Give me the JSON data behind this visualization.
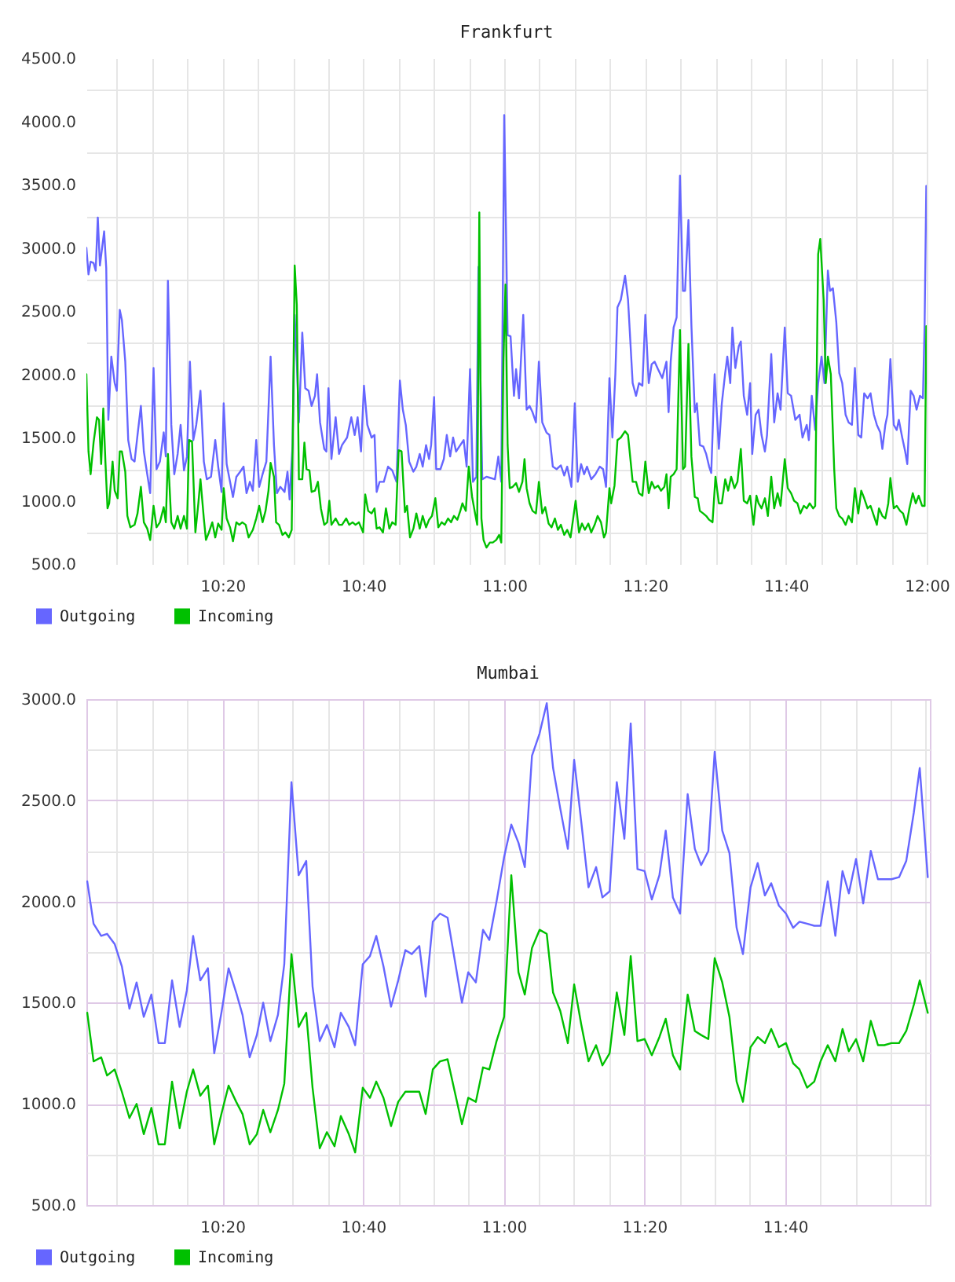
{
  "chart_data": [
    {
      "type": "line",
      "title": "Frankfurt",
      "xlim": [
        10.011,
        12.0
      ],
      "ylim": [
        500,
        4500
      ],
      "grid": true,
      "legend": "bottom left",
      "xticks": [
        {
          "value": 10.0833,
          "label": null
        },
        {
          "value": 10.1667,
          "label": null
        },
        {
          "value": 10.25,
          "label": null
        },
        {
          "value": 10.3333,
          "label": "10:20"
        },
        {
          "value": 10.4167,
          "label": null
        },
        {
          "value": 10.5,
          "label": null
        },
        {
          "value": 10.5833,
          "label": null
        },
        {
          "value": 10.6667,
          "label": "10:40"
        },
        {
          "value": 10.75,
          "label": null
        },
        {
          "value": 10.8333,
          "label": null
        },
        {
          "value": 10.9167,
          "label": null
        },
        {
          "value": 11.0,
          "label": "11:00"
        },
        {
          "value": 11.0833,
          "label": null
        },
        {
          "value": 11.1667,
          "label": null
        },
        {
          "value": 11.25,
          "label": null
        },
        {
          "value": 11.3333,
          "label": "11:20"
        },
        {
          "value": 11.4167,
          "label": null
        },
        {
          "value": 11.5,
          "label": null
        },
        {
          "value": 11.5833,
          "label": null
        },
        {
          "value": 11.6667,
          "label": "11:40"
        },
        {
          "value": 11.75,
          "label": null
        },
        {
          "value": 11.8333,
          "label": null
        },
        {
          "value": 11.9167,
          "label": null
        },
        {
          "value": 12.0,
          "label": "12:00"
        }
      ],
      "yticks": [
        {
          "value": 500,
          "label": "500.0"
        },
        {
          "value": 750,
          "label": null
        },
        {
          "value": 1000,
          "label": "1000.0"
        },
        {
          "value": 1250,
          "label": null
        },
        {
          "value": 1500,
          "label": "1500.0"
        },
        {
          "value": 1750,
          "label": null
        },
        {
          "value": 2000,
          "label": "2000.0"
        },
        {
          "value": 2250,
          "label": null
        },
        {
          "value": 2500,
          "label": "2500.0"
        },
        {
          "value": 2750,
          "label": null
        },
        {
          "value": 3000,
          "label": "3000.0"
        },
        {
          "value": 3250,
          "label": null
        },
        {
          "value": 3500,
          "label": "3500.0"
        },
        {
          "value": 3750,
          "label": null
        },
        {
          "value": 4000,
          "label": "4000.0"
        },
        {
          "value": 4250,
          "label": null
        },
        {
          "value": 4500,
          "label": "4500.0"
        }
      ],
      "series": [
        {
          "name": "Outgoing",
          "color": "#6666ff",
          "x": [
            10.011,
            10.016,
            10.021,
            10.028,
            10.033,
            10.038,
            10.043,
            10.053,
            10.058,
            10.063,
            10.07,
            10.078,
            10.083,
            10.09,
            10.095,
            10.103,
            10.11,
            10.118,
            10.125,
            10.132,
            10.14,
            10.147,
            10.155,
            10.162,
            10.17,
            10.177,
            10.185,
            10.194,
            10.199,
            10.204,
            10.212,
            10.219,
            10.227,
            10.234,
            10.242,
            10.249,
            10.256,
            10.264,
            10.271,
            10.281,
            10.289,
            10.296,
            10.306,
            10.316,
            10.323,
            10.331,
            10.336,
            10.343,
            10.351,
            10.358,
            10.366,
            10.375,
            10.383,
            10.39,
            10.398,
            10.405,
            10.413,
            10.42,
            10.428,
            10.437,
            10.447,
            10.455,
            10.462,
            10.47,
            10.48,
            10.487,
            10.492,
            10.499,
            10.504,
            10.509,
            10.514,
            10.522,
            10.529,
            10.537,
            10.544,
            10.552,
            10.557,
            10.564,
            10.574,
            10.579,
            10.584,
            10.591,
            10.601,
            10.609,
            10.616,
            10.628,
            10.638,
            10.646,
            10.653,
            10.661,
            10.668,
            10.676,
            10.686,
            10.693,
            10.698,
            10.705,
            10.715,
            10.725,
            10.735,
            10.745,
            10.753,
            10.76,
            10.767,
            10.775,
            10.785,
            10.792,
            10.8,
            10.807,
            10.815,
            10.822,
            10.827,
            10.834,
            10.839,
            10.849,
            10.857,
            10.864,
            10.872,
            10.879,
            10.886,
            10.896,
            10.904,
            10.911,
            10.919,
            10.926,
            10.934,
            10.939,
            10.948,
            10.958,
            10.968,
            10.978,
            10.986,
            10.993,
            11.0,
            11.008,
            11.015,
            11.023,
            11.028,
            11.035,
            11.045,
            11.053,
            11.06,
            11.067,
            11.075,
            11.082,
            11.09,
            11.1,
            11.107,
            11.115,
            11.124,
            11.134,
            11.142,
            11.149,
            11.159,
            11.167,
            11.174,
            11.182,
            11.189,
            11.196,
            11.206,
            11.216,
            11.226,
            11.234,
            11.241,
            11.249,
            11.256,
            11.263,
            11.268,
            11.276,
            11.286,
            11.293,
            11.304,
            11.312,
            11.319,
            11.327,
            11.334,
            11.342,
            11.349,
            11.356,
            11.364,
            11.374,
            11.384,
            11.389,
            11.394,
            11.401,
            11.408,
            11.416,
            11.423,
            11.428,
            11.436,
            11.443,
            11.451,
            11.456,
            11.463,
            11.471,
            11.478,
            11.485,
            11.49,
            11.498,
            11.508,
            11.515,
            11.523,
            11.528,
            11.535,
            11.54,
            11.547,
            11.555,
            11.56,
            11.567,
            11.575,
            11.582,
            11.587,
            11.595,
            11.602,
            11.609,
            11.617,
            11.622,
            11.632,
            11.639,
            11.647,
            11.654,
            11.664,
            11.671,
            11.679,
            11.689,
            11.699,
            11.706,
            11.716,
            11.721,
            11.728,
            11.736,
            11.743,
            11.751,
            11.758,
            11.766,
            11.771,
            11.778,
            11.786,
            11.793,
            11.8,
            11.808,
            11.815,
            11.823,
            11.83,
            11.838,
            11.845,
            11.852,
            11.86,
            11.867,
            11.875,
            11.882,
            11.89,
            11.895,
            11.902,
            11.907,
            11.914,
            11.922,
            11.929,
            11.934,
            11.942,
            11.949,
            11.954,
            11.962,
            11.969,
            11.976,
            11.984,
            11.991,
            11.995,
            11.999
          ],
          "values": [
            3000,
            2790,
            2890,
            2880,
            2820,
            3240,
            2860,
            3130,
            2840,
            1640,
            2140,
            1930,
            1870,
            2510,
            2430,
            2100,
            1480,
            1330,
            1310,
            1520,
            1750,
            1390,
            1210,
            1060,
            2050,
            1250,
            1310,
            1540,
            1350,
            2740,
            1600,
            1210,
            1370,
            1600,
            1240,
            1350,
            2100,
            1480,
            1600,
            1870,
            1310,
            1170,
            1190,
            1480,
            1270,
            1070,
            1770,
            1290,
            1150,
            1030,
            1190,
            1230,
            1270,
            1060,
            1150,
            1080,
            1480,
            1110,
            1210,
            1310,
            2140,
            1440,
            1060,
            1110,
            1070,
            1230,
            1010,
            1440,
            2470,
            2100,
            1620,
            2330,
            1890,
            1870,
            1750,
            1830,
            2000,
            1620,
            1410,
            1390,
            1890,
            1330,
            1660,
            1370,
            1440,
            1500,
            1660,
            1520,
            1660,
            1390,
            1910,
            1600,
            1500,
            1520,
            1070,
            1150,
            1150,
            1270,
            1240,
            1150,
            1950,
            1720,
            1600,
            1310,
            1230,
            1270,
            1370,
            1270,
            1440,
            1330,
            1440,
            1820,
            1250,
            1250,
            1330,
            1520,
            1350,
            1500,
            1390,
            1440,
            1480,
            1270,
            2040,
            1150,
            1190,
            2850,
            1170,
            1190,
            1180,
            1170,
            1350,
            1150,
            4050,
            2310,
            2300,
            1830,
            2040,
            1810,
            2470,
            1720,
            1750,
            1700,
            1620,
            2100,
            1620,
            1540,
            1520,
            1270,
            1250,
            1280,
            1200,
            1270,
            1110,
            1770,
            1150,
            1290,
            1210,
            1270,
            1170,
            1210,
            1270,
            1250,
            1110,
            1970,
            1500,
            2000,
            2530,
            2590,
            2780,
            2590,
            1930,
            1830,
            1930,
            1910,
            2470,
            1930,
            2080,
            2100,
            2040,
            1970,
            2100,
            1700,
            2100,
            2370,
            2450,
            3570,
            2660,
            2660,
            3220,
            2390,
            1700,
            1770,
            1440,
            1430,
            1370,
            1270,
            1220,
            2000,
            1410,
            1770,
            2010,
            2140,
            1930,
            2370,
            2050,
            2220,
            2260,
            1830,
            1680,
            1930,
            1370,
            1680,
            1720,
            1520,
            1390,
            1520,
            2160,
            1620,
            1850,
            1720,
            2370,
            1850,
            1830,
            1640,
            1680,
            1500,
            1600,
            1480,
            1830,
            1560,
            1930,
            2140,
            1930,
            2820,
            2660,
            2680,
            2410,
            2010,
            1930,
            1680,
            1620,
            1600,
            2050,
            1520,
            1500,
            1850,
            1810,
            1850,
            1680,
            1600,
            1540,
            1410,
            1600,
            1680,
            2120,
            1600,
            1560,
            1640,
            1500,
            1390,
            1290,
            1870,
            1830,
            1720,
            1830,
            1810,
            2390,
            3490
          ]
        },
        {
          "name": "Incoming",
          "color": "#00c000",
          "x": [
            10.011,
            10.016,
            10.021,
            10.028,
            10.036,
            10.041,
            10.046,
            10.051,
            10.056,
            10.061,
            10.065,
            10.073,
            10.078,
            10.085,
            10.09,
            10.095,
            10.103,
            10.108,
            10.115,
            10.125,
            10.132,
            10.14,
            10.147,
            10.155,
            10.162,
            10.17,
            10.177,
            10.185,
            10.194,
            10.199,
            10.204,
            10.212,
            10.219,
            10.227,
            10.234,
            10.242,
            10.249,
            10.254,
            10.261,
            10.269,
            10.276,
            10.281,
            10.289,
            10.294,
            10.301,
            10.309,
            10.316,
            10.323,
            10.331,
            10.336,
            10.343,
            10.351,
            10.358,
            10.366,
            10.373,
            10.38,
            10.388,
            10.395,
            10.405,
            10.413,
            10.42,
            10.428,
            10.435,
            10.442,
            10.447,
            10.455,
            10.46,
            10.467,
            10.475,
            10.482,
            10.49,
            10.497,
            10.504,
            10.509,
            10.514,
            10.522,
            10.527,
            10.532,
            10.539,
            10.544,
            10.552,
            10.559,
            10.566,
            10.574,
            10.581,
            10.586,
            10.591,
            10.601,
            10.609,
            10.616,
            10.626,
            10.633,
            10.641,
            10.648,
            10.656,
            10.666,
            10.671,
            10.678,
            10.686,
            10.693,
            10.698,
            10.705,
            10.713,
            10.72,
            10.728,
            10.735,
            10.743,
            10.75,
            10.757,
            10.765,
            10.77,
            10.777,
            10.785,
            10.792,
            10.8,
            10.807,
            10.815,
            10.822,
            10.829,
            10.837,
            10.844,
            10.852,
            10.859,
            10.867,
            10.874,
            10.881,
            10.889,
            10.896,
            10.901,
            10.909,
            10.916,
            10.924,
            10.931,
            10.936,
            10.941,
            10.946,
            10.951,
            10.958,
            10.966,
            10.973,
            10.981,
            10.988,
            10.993,
            10.998,
            11.003,
            11.008,
            11.013,
            11.02,
            11.028,
            11.035,
            11.043,
            11.048,
            11.053,
            11.06,
            11.067,
            11.075,
            11.082,
            11.09,
            11.097,
            11.105,
            11.112,
            11.12,
            11.127,
            11.134,
            11.142,
            11.149,
            11.157,
            11.164,
            11.169,
            11.177,
            11.184,
            11.191,
            11.199,
            11.206,
            11.214,
            11.221,
            11.229,
            11.236,
            11.241,
            11.249,
            11.253,
            11.261,
            11.268,
            11.276,
            11.286,
            11.293,
            11.304,
            11.312,
            11.319,
            11.327,
            11.334,
            11.342,
            11.349,
            11.356,
            11.364,
            11.371,
            11.379,
            11.384,
            11.389,
            11.394,
            11.401,
            11.408,
            11.416,
            11.423,
            11.428,
            11.436,
            11.443,
            11.451,
            11.458,
            11.463,
            11.471,
            11.478,
            11.485,
            11.493,
            11.5,
            11.508,
            11.515,
            11.523,
            11.53,
            11.537,
            11.545,
            11.552,
            11.56,
            11.567,
            11.575,
            11.582,
            11.59,
            11.597,
            11.602,
            11.609,
            11.617,
            11.624,
            11.632,
            11.639,
            11.647,
            11.654,
            11.664,
            11.671,
            11.679,
            11.686,
            11.694,
            11.701,
            11.709,
            11.716,
            11.723,
            11.731,
            11.736,
            11.743,
            11.748,
            11.756,
            11.761,
            11.766,
            11.773,
            11.781,
            11.786,
            11.793,
            11.8,
            11.808,
            11.815,
            11.823,
            11.83,
            11.838,
            11.845,
            11.852,
            11.86,
            11.867,
            11.875,
            11.882,
            11.887,
            11.895,
            11.902,
            11.909,
            11.914,
            11.922,
            11.929,
            11.937,
            11.944,
            11.952,
            11.959,
            11.967,
            11.974,
            11.981,
            11.989,
            11.995,
            11.999
          ],
          "values": [
            2000,
            1390,
            1210,
            1460,
            1660,
            1640,
            1290,
            1730,
            1310,
            940,
            980,
            1310,
            1080,
            1020,
            1390,
            1390,
            1230,
            880,
            790,
            810,
            900,
            1110,
            830,
            780,
            690,
            960,
            790,
            830,
            950,
            830,
            1370,
            830,
            780,
            880,
            780,
            880,
            780,
            1480,
            1470,
            750,
            980,
            1170,
            860,
            690,
            750,
            830,
            710,
            820,
            770,
            1100,
            860,
            790,
            680,
            830,
            810,
            830,
            810,
            710,
            770,
            860,
            960,
            830,
            920,
            1080,
            1300,
            1190,
            830,
            810,
            730,
            750,
            710,
            770,
            2860,
            2550,
            1170,
            1170,
            1460,
            1250,
            1240,
            1070,
            1080,
            1150,
            940,
            810,
            830,
            1000,
            810,
            860,
            810,
            810,
            860,
            810,
            830,
            810,
            830,
            750,
            1050,
            920,
            900,
            940,
            780,
            790,
            750,
            940,
            780,
            830,
            810,
            1400,
            1390,
            910,
            960,
            710,
            780,
            900,
            780,
            880,
            790,
            850,
            880,
            1020,
            790,
            830,
            810,
            860,
            830,
            880,
            850,
            920,
            980,
            920,
            1270,
            1030,
            900,
            810,
            3280,
            860,
            690,
            630,
            670,
            670,
            690,
            730,
            670,
            2100,
            2710,
            1440,
            1100,
            1110,
            1140,
            1070,
            1150,
            1330,
            1100,
            980,
            920,
            900,
            1150,
            900,
            950,
            820,
            790,
            860,
            770,
            810,
            730,
            770,
            710,
            880,
            1000,
            750,
            820,
            770,
            820,
            750,
            810,
            880,
            830,
            710,
            750,
            1100,
            980,
            1120,
            1480,
            1500,
            1550,
            1520,
            1150,
            1150,
            1060,
            1040,
            1310,
            1060,
            1150,
            1100,
            1120,
            1080,
            1110,
            1210,
            940,
            1190,
            1210,
            1250,
            2350,
            1250,
            1270,
            2240,
            1350,
            1030,
            1020,
            920,
            900,
            880,
            850,
            830,
            1190,
            980,
            980,
            1170,
            1080,
            1190,
            1100,
            1150,
            1410,
            1000,
            980,
            1040,
            810,
            1040,
            980,
            940,
            1020,
            880,
            1190,
            940,
            1060,
            960,
            1330,
            1100,
            1060,
            1000,
            980,
            900,
            960,
            940,
            980,
            940,
            960,
            2950,
            3070,
            2590,
            1930,
            2140,
            2000,
            1250,
            940,
            880,
            860,
            810,
            880,
            830,
            1100,
            900,
            1080,
            1020,
            940,
            960,
            880,
            810,
            940,
            880,
            860,
            980,
            1180,
            940,
            960,
            920,
            900,
            810,
            940,
            1060,
            980,
            1040,
            960,
            960,
            2380
          ]
        }
      ]
    },
    {
      "type": "line",
      "title": "Mumbai",
      "xlim": [
        10.011,
        12.01
      ],
      "ylim": [
        500,
        3000
      ],
      "grid": true,
      "legend": "bottom left",
      "xticks": [
        {
          "value": 10.0833,
          "label": null
        },
        {
          "value": 10.1667,
          "label": null
        },
        {
          "value": 10.25,
          "label": null
        },
        {
          "value": 10.3333,
          "label": "10:20"
        },
        {
          "value": 10.4167,
          "label": null
        },
        {
          "value": 10.5,
          "label": null
        },
        {
          "value": 10.5833,
          "label": null
        },
        {
          "value": 10.6667,
          "label": "10:40"
        },
        {
          "value": 10.75,
          "label": null
        },
        {
          "value": 10.8333,
          "label": null
        },
        {
          "value": 10.9167,
          "label": null
        },
        {
          "value": 11.0,
          "label": "11:00"
        },
        {
          "value": 11.0833,
          "label": null
        },
        {
          "value": 11.1667,
          "label": null
        },
        {
          "value": 11.25,
          "label": null
        },
        {
          "value": 11.3333,
          "label": "11:20"
        },
        {
          "value": 11.4167,
          "label": null
        },
        {
          "value": 11.5,
          "label": null
        },
        {
          "value": 11.5833,
          "label": null
        },
        {
          "value": 11.6667,
          "label": "11:40"
        },
        {
          "value": 11.75,
          "label": null
        },
        {
          "value": 11.8333,
          "label": null
        },
        {
          "value": 11.9167,
          "label": null
        },
        {
          "value": 12.0,
          "label": null
        }
      ],
      "yticks": [
        {
          "value": 500,
          "label": "500.0"
        },
        {
          "value": 750,
          "label": null
        },
        {
          "value": 1000,
          "label": "1000.0"
        },
        {
          "value": 1250,
          "label": null
        },
        {
          "value": 1500,
          "label": "1500.0"
        },
        {
          "value": 1750,
          "label": null
        },
        {
          "value": 2000,
          "label": "2000.0"
        },
        {
          "value": 2250,
          "label": null
        },
        {
          "value": 2500,
          "label": "2500.0"
        },
        {
          "value": 2750,
          "label": null
        },
        {
          "value": 3000,
          "label": "3000.0"
        }
      ],
      "x": [
        10.013,
        10.028,
        10.046,
        10.06,
        10.078,
        10.095,
        10.113,
        10.13,
        10.147,
        10.165,
        10.182,
        10.197,
        10.214,
        10.232,
        10.249,
        10.264,
        10.281,
        10.299,
        10.314,
        10.331,
        10.348,
        10.366,
        10.381,
        10.398,
        10.415,
        10.43,
        10.447,
        10.465,
        10.48,
        10.497,
        10.514,
        10.532,
        10.547,
        10.564,
        10.581,
        10.599,
        10.614,
        10.633,
        10.648,
        10.666,
        10.683,
        10.698,
        10.715,
        10.733,
        10.75,
        10.767,
        10.782,
        10.8,
        10.815,
        10.832,
        10.849,
        10.867,
        10.884,
        10.901,
        10.916,
        10.934,
        10.951,
        10.966,
        10.983,
        11.001,
        11.018,
        11.035,
        11.05,
        11.067,
        11.085,
        11.102,
        11.117,
        11.134,
        11.152,
        11.167,
        11.184,
        11.201,
        11.219,
        11.234,
        11.251,
        11.268,
        11.286,
        11.301,
        11.317,
        11.334,
        11.351,
        11.369,
        11.384,
        11.401,
        11.418,
        11.436,
        11.453,
        11.468,
        11.485,
        11.5,
        11.518,
        11.535,
        11.552,
        11.567,
        11.585,
        11.602,
        11.619,
        11.634,
        11.652,
        11.669,
        11.686,
        11.701,
        11.719,
        11.736,
        11.751,
        11.768,
        11.786,
        11.803,
        11.818,
        11.835,
        11.852,
        11.87,
        11.887,
        11.902,
        11.919,
        11.937,
        11.954,
        11.972,
        11.986,
        12.005
      ],
      "series": [
        {
          "name": "Outgoing",
          "color": "#6666ff",
          "values": [
            2100,
            1890,
            1830,
            1840,
            1790,
            1680,
            1470,
            1600,
            1430,
            1540,
            1300,
            1300,
            1610,
            1380,
            1560,
            1830,
            1610,
            1670,
            1250,
            1450,
            1670,
            1550,
            1440,
            1230,
            1340,
            1500,
            1310,
            1440,
            1690,
            2590,
            2130,
            2200,
            1580,
            1310,
            1390,
            1280,
            1450,
            1380,
            1290,
            1690,
            1730,
            1830,
            1680,
            1480,
            1610,
            1760,
            1740,
            1780,
            1530,
            1900,
            1940,
            1920,
            1710,
            1500,
            1650,
            1600,
            1860,
            1810,
            2000,
            2220,
            2380,
            2290,
            2170,
            2720,
            2830,
            2980,
            2660,
            2460,
            2260,
            2700,
            2390,
            2070,
            2170,
            2020,
            2050,
            2590,
            2310,
            2880,
            2160,
            2150,
            2010,
            2130,
            2350,
            2020,
            1940,
            2530,
            2260,
            2180,
            2250,
            2740,
            2350,
            2240,
            1870,
            1740,
            2070,
            2190,
            2030,
            2090,
            1980,
            1940,
            1870,
            1900,
            1890,
            1880,
            1880,
            2100,
            1830,
            2150,
            2040,
            2210,
            1990,
            2250,
            2110,
            2110,
            2110,
            2120,
            2200,
            2440,
            2660,
            2120
          ]
        },
        {
          "name": "Incoming",
          "color": "#00c000",
          "values": [
            1450,
            1210,
            1230,
            1140,
            1170,
            1060,
            930,
            1000,
            850,
            980,
            800,
            800,
            1110,
            880,
            1060,
            1170,
            1040,
            1090,
            800,
            950,
            1090,
            1010,
            950,
            800,
            850,
            970,
            860,
            970,
            1100,
            1740,
            1380,
            1450,
            1080,
            780,
            860,
            790,
            940,
            850,
            760,
            1080,
            1030,
            1110,
            1030,
            890,
            1010,
            1060,
            1060,
            1060,
            950,
            1170,
            1210,
            1220,
            1060,
            900,
            1030,
            1010,
            1180,
            1170,
            1310,
            1430,
            2130,
            1650,
            1540,
            1770,
            1860,
            1840,
            1550,
            1460,
            1300,
            1590,
            1390,
            1210,
            1290,
            1190,
            1250,
            1550,
            1340,
            1730,
            1310,
            1320,
            1240,
            1330,
            1420,
            1240,
            1170,
            1540,
            1360,
            1340,
            1320,
            1720,
            1600,
            1430,
            1110,
            1010,
            1280,
            1330,
            1300,
            1370,
            1280,
            1300,
            1200,
            1170,
            1080,
            1110,
            1210,
            1290,
            1210,
            1370,
            1260,
            1320,
            1210,
            1410,
            1290,
            1290,
            1300,
            1300,
            1360,
            1490,
            1610,
            1450
          ]
        }
      ]
    }
  ]
}
